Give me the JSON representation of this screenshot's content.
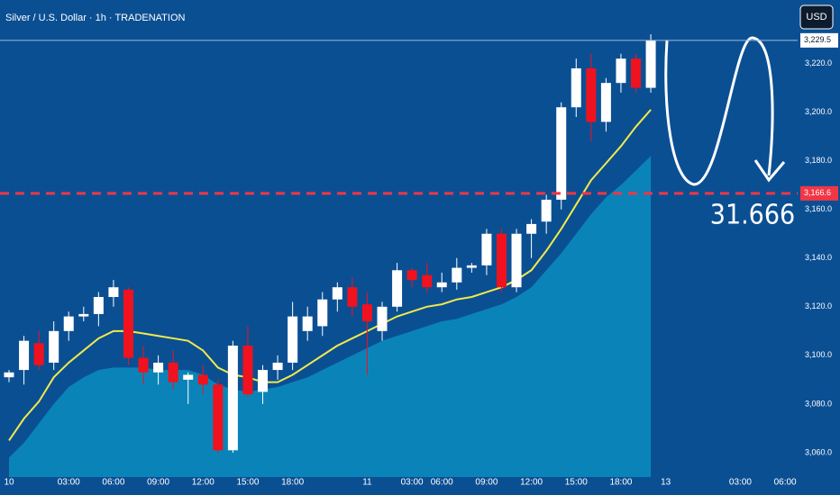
{
  "chart_data": {
    "type": "candlestick",
    "title": "Silver / U.S. Dollar · 1h · TRADENATION",
    "currency": "USD",
    "annotation": "31.666",
    "categories": [
      "10",
      null,
      null,
      null,
      "03:00",
      null,
      null,
      "06:00",
      null,
      null,
      "09:00",
      null,
      null,
      "12:00",
      null,
      null,
      "15:00",
      null,
      null,
      "18:00",
      null,
      null,
      null,
      null,
      "11",
      null,
      null,
      "03:00",
      null,
      "06:00",
      null,
      null,
      "09:00",
      null,
      null,
      "12:00",
      null,
      null,
      "15:00",
      null,
      null,
      "18:00",
      null,
      null,
      "13",
      null,
      null,
      null,
      null,
      "03:00",
      null,
      null,
      "06:00"
    ],
    "open": [
      3091,
      3094,
      3105,
      3097,
      3110,
      3116,
      3117,
      3124,
      3127,
      3099,
      3093,
      3097,
      3090,
      3092,
      3088,
      3061,
      3104,
      3085,
      3094,
      3097,
      3110,
      3112,
      3123,
      3128,
      3121,
      3110,
      3120,
      3135,
      3133,
      3128,
      3130,
      3136,
      3137,
      3150,
      3128,
      3150,
      3155,
      3164,
      3202,
      3218,
      3196,
      3212,
      3222,
      3210,
      null,
      null,
      null,
      null,
      null,
      null,
      null,
      null,
      null
    ],
    "high": [
      3094,
      3108,
      3110,
      3114,
      3118,
      3120,
      3126,
      3131,
      3128,
      3104,
      3100,
      3102,
      3093,
      3096,
      3090,
      3106,
      3112,
      3096,
      3100,
      3122,
      3120,
      3126,
      3130,
      3132,
      3126,
      3122,
      3138,
      3136,
      3138,
      3134,
      3140,
      3138,
      3152,
      3152,
      3152,
      3156,
      3166,
      3204,
      3222,
      3224,
      3214,
      3224,
      3224,
      3232,
      null,
      null,
      null,
      null,
      null,
      null,
      null,
      null,
      null
    ],
    "low": [
      3089,
      3088,
      3094,
      3094,
      3106,
      3114,
      3112,
      3120,
      3096,
      3088,
      3088,
      3086,
      3080,
      3084,
      3060,
      3060,
      3083,
      3080,
      3090,
      3094,
      3106,
      3108,
      3118,
      3116,
      3092,
      3106,
      3118,
      3128,
      3126,
      3126,
      3127,
      3134,
      3133,
      3126,
      3126,
      3140,
      3150,
      3160,
      3198,
      3188,
      3192,
      3208,
      3208,
      3208,
      null,
      null,
      null,
      null,
      null,
      null,
      null,
      null,
      null
    ],
    "close": [
      3093,
      3106,
      3096,
      3110,
      3116,
      3117,
      3124,
      3128,
      3099,
      3093,
      3097,
      3089,
      3092,
      3088,
      3061,
      3104,
      3084,
      3094,
      3097,
      3116,
      3116,
      3123,
      3128,
      3120,
      3114,
      3120,
      3135,
      3131,
      3128,
      3130,
      3136,
      3137,
      3150,
      3128,
      3150,
      3154,
      3164,
      3202,
      3218,
      3196,
      3212,
      3222,
      3210,
      3229.5,
      null,
      null,
      null,
      null,
      null,
      null,
      null,
      null,
      null
    ],
    "up_color": "#ffffff",
    "down_color": "#f0121e",
    "overlays": [
      {
        "type": "area",
        "color": "#0a84b8",
        "values": [
          3058,
          3064,
          3072,
          3080,
          3087,
          3091,
          3094,
          3095,
          3095,
          3095,
          3094,
          3094,
          3094,
          3092,
          3088,
          3086,
          3085,
          3086,
          3087,
          3089,
          3091,
          3094,
          3097,
          3100,
          3103,
          3106,
          3108,
          3110,
          3112,
          3114,
          3115,
          3117,
          3119,
          3121,
          3124,
          3128,
          3135,
          3142,
          3150,
          3158,
          3165,
          3170,
          3176,
          3182,
          null,
          null,
          null,
          null,
          null,
          null,
          null,
          null,
          null
        ]
      },
      {
        "type": "line",
        "color": "#f2ea4a",
        "values": [
          3065,
          3074,
          3081,
          3091,
          3097,
          3102,
          3107,
          3110,
          3110,
          3109,
          3108,
          3107,
          3106,
          3102,
          3095,
          3092,
          3091,
          3089,
          3089,
          3092,
          3096,
          3100,
          3104,
          3107,
          3110,
          3113,
          3116,
          3118,
          3120,
          3121,
          3123,
          3124,
          3126,
          3128,
          3131,
          3135,
          3143,
          3152,
          3162,
          3172,
          3179,
          3186,
          3194,
          3201,
          null,
          null,
          null,
          null,
          null,
          null,
          null,
          null,
          null
        ]
      }
    ],
    "level": {
      "value": 3166.6,
      "label": "3,166.6",
      "color": "#f23645"
    },
    "last_price": {
      "value": 3229.5,
      "label": "3,229.5"
    },
    "ylim": [
      3050,
      3235
    ],
    "yticks": [
      {
        "value": 3060,
        "label": "3,060.0"
      },
      {
        "value": 3080,
        "label": "3,080.0"
      },
      {
        "value": 3100,
        "label": "3,100.0"
      },
      {
        "value": 3120,
        "label": "3,120.0"
      },
      {
        "value": 3140,
        "label": "3,140.0"
      },
      {
        "value": 3160,
        "label": "3,160.0"
      },
      {
        "value": 3180,
        "label": "3,180.0"
      },
      {
        "value": 3200,
        "label": "3,200.0"
      },
      {
        "value": 3220,
        "label": "3,220.0"
      }
    ]
  }
}
